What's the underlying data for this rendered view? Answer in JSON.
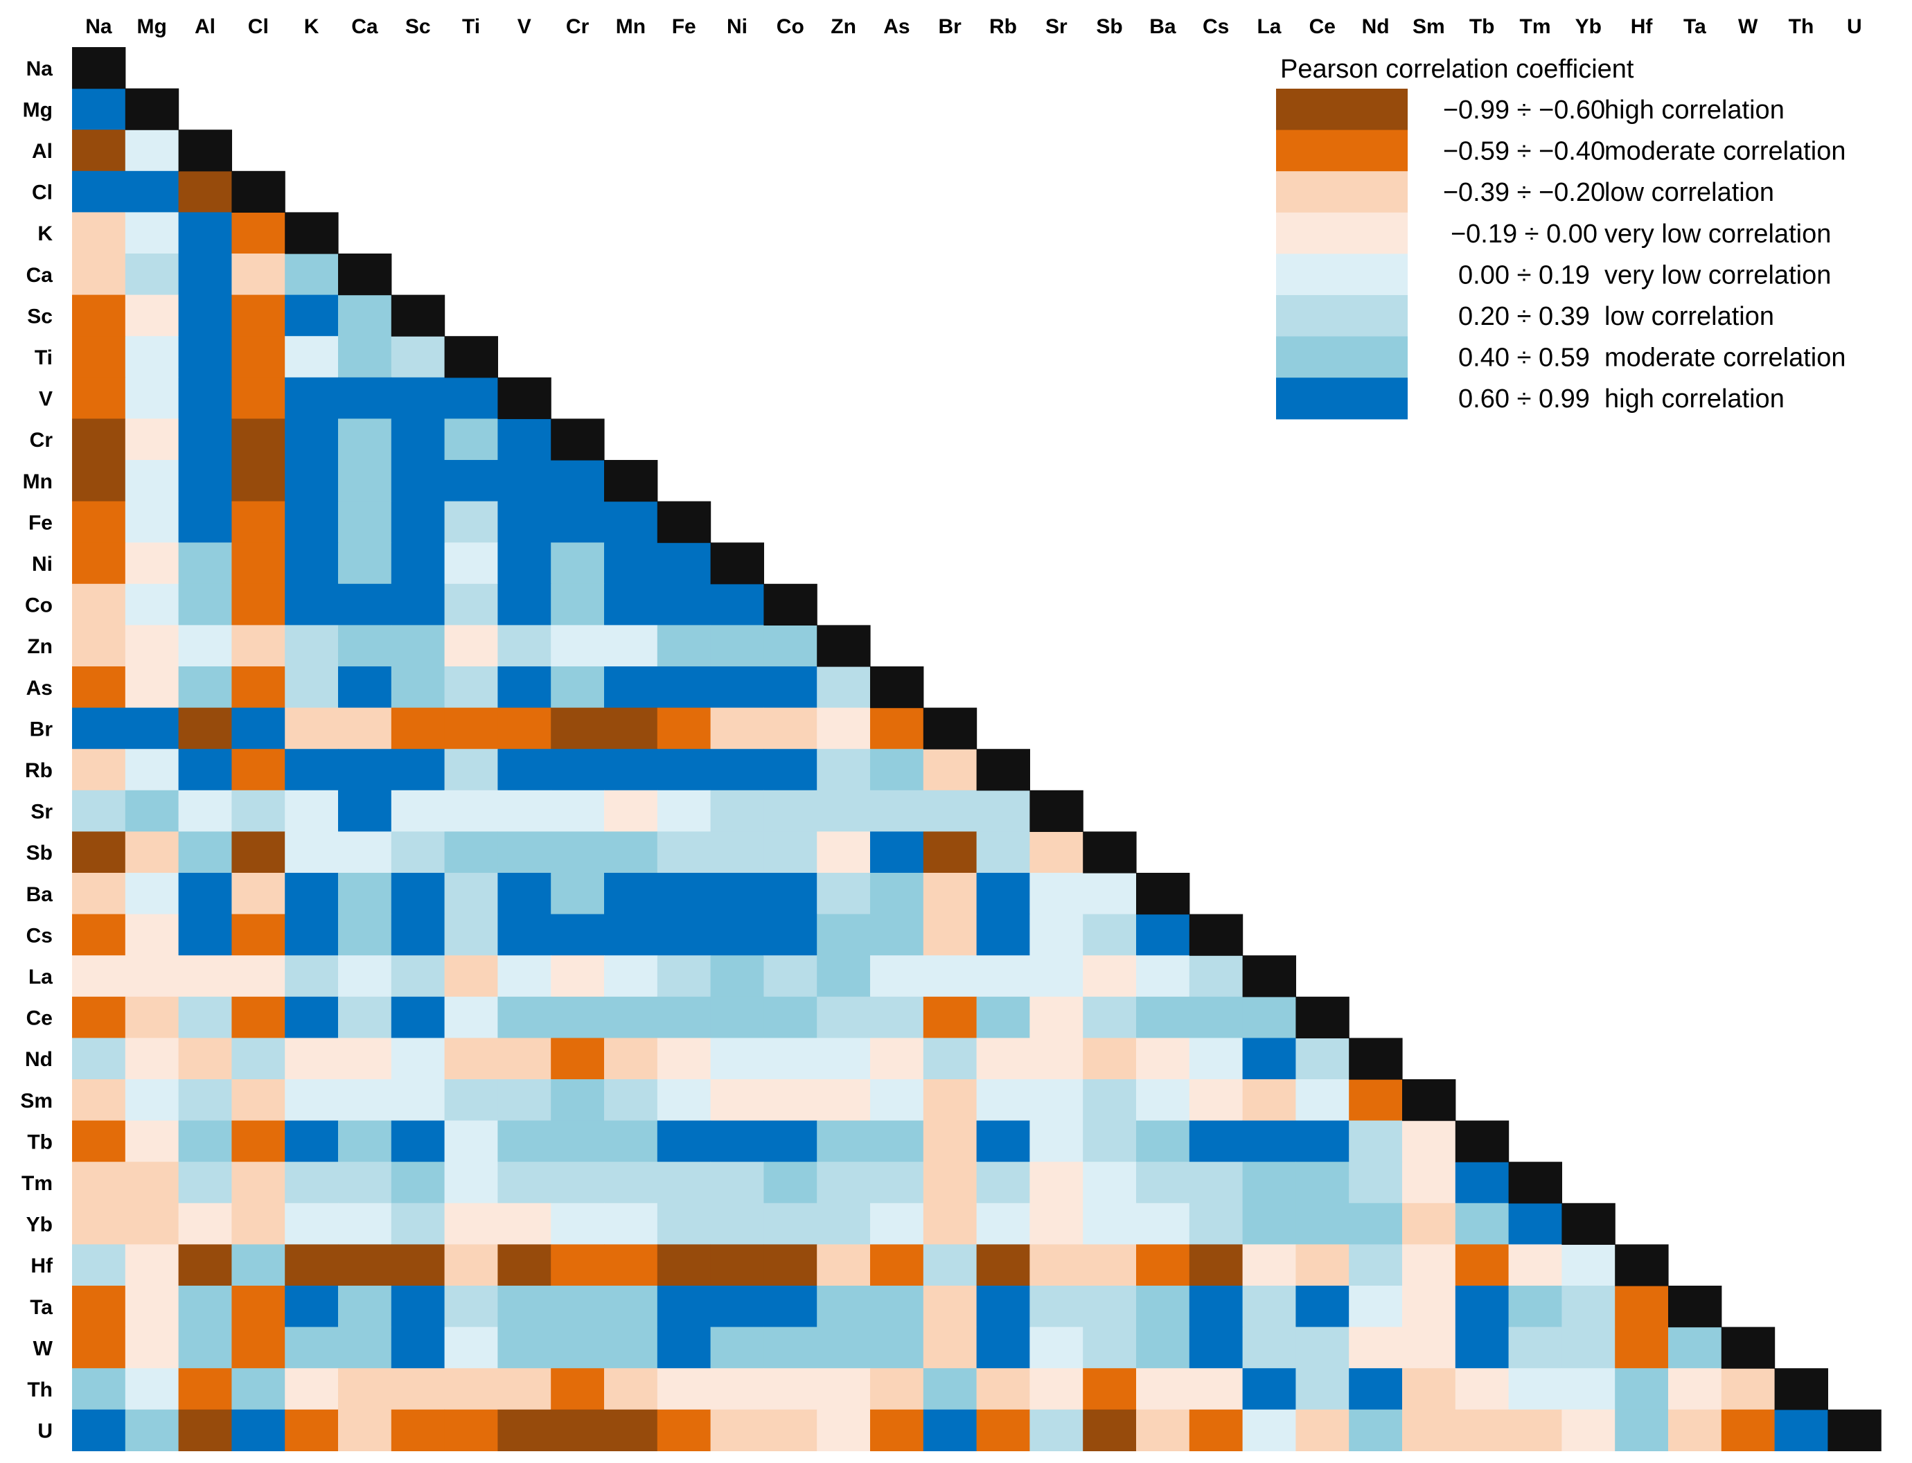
{
  "chart_data": {
    "type": "heatmap",
    "title": "Pearson correlation coefficient",
    "variables": [
      "Na",
      "Mg",
      "Al",
      "Cl",
      "K",
      "Ca",
      "Sc",
      "Ti",
      "V",
      "Cr",
      "Mn",
      "Fe",
      "Ni",
      "Co",
      "Zn",
      "As",
      "Br",
      "Rb",
      "Sr",
      "Sb",
      "Ba",
      "Cs",
      "La",
      "Ce",
      "Nd",
      "Sm",
      "Tb",
      "Tm",
      "Yb",
      "Hf",
      "Ta",
      "W",
      "Th",
      "U"
    ],
    "layout": "lower-triangle",
    "diagonal_color": "#111111",
    "value_encoding": "category index into legend.categories (0 = -0.99÷-0.60 ... 7 = 0.60÷0.99)",
    "legend": {
      "title": "Pearson correlation coefficient",
      "categories": [
        {
          "range": "−0.99 ÷ −0.60",
          "label": "high correlation",
          "color": "#974b0c"
        },
        {
          "range": "−0.59 ÷ −0.40",
          "label": "moderate correlation",
          "color": "#e36c09"
        },
        {
          "range": "−0.39 ÷ −0.20",
          "label": "low correlation",
          "color": "#fad4b8"
        },
        {
          "range": "−0.19 ÷ 0.00",
          "label": "very low correlation",
          "color": "#fce8dc"
        },
        {
          "range": "0.00 ÷ 0.19",
          "label": "very low correlation",
          "color": "#dceff6"
        },
        {
          "range": "0.20 ÷ 0.39",
          "label": "low correlation",
          "color": "#b8dde8"
        },
        {
          "range": "0.40 ÷ 0.59",
          "label": "moderate correlation",
          "color": "#92cddd"
        },
        {
          "range": "0.60 ÷ 0.99",
          "label": "high correlation",
          "color": "#0070c0"
        }
      ]
    },
    "matrix": [
      [],
      [
        7
      ],
      [
        0,
        4
      ],
      [
        7,
        7,
        0
      ],
      [
        2,
        4,
        7,
        1
      ],
      [
        2,
        5,
        7,
        2,
        6
      ],
      [
        1,
        3,
        7,
        1,
        7,
        6
      ],
      [
        1,
        4,
        7,
        1,
        4,
        6,
        5
      ],
      [
        1,
        4,
        7,
        1,
        7,
        7,
        7,
        7
      ],
      [
        0,
        3,
        7,
        0,
        7,
        6,
        7,
        6,
        7
      ],
      [
        0,
        4,
        7,
        0,
        7,
        6,
        7,
        7,
        7,
        7
      ],
      [
        1,
        4,
        7,
        1,
        7,
        6,
        7,
        5,
        7,
        7,
        7
      ],
      [
        1,
        3,
        6,
        1,
        7,
        6,
        7,
        4,
        7,
        6,
        7,
        7
      ],
      [
        2,
        4,
        6,
        1,
        7,
        7,
        7,
        5,
        7,
        6,
        7,
        7,
        7
      ],
      [
        2,
        3,
        4,
        2,
        5,
        6,
        6,
        3,
        5,
        4,
        4,
        6,
        6,
        6
      ],
      [
        1,
        3,
        6,
        1,
        5,
        7,
        6,
        5,
        7,
        6,
        7,
        7,
        7,
        7,
        5
      ],
      [
        7,
        7,
        0,
        7,
        2,
        2,
        1,
        1,
        1,
        0,
        0,
        1,
        2,
        2,
        3,
        1
      ],
      [
        2,
        4,
        7,
        1,
        7,
        7,
        7,
        5,
        7,
        7,
        7,
        7,
        7,
        7,
        5,
        6,
        2
      ],
      [
        5,
        6,
        4,
        5,
        4,
        7,
        4,
        4,
        4,
        4,
        3,
        4,
        5,
        5,
        5,
        5,
        5,
        5
      ],
      [
        0,
        2,
        6,
        0,
        4,
        4,
        5,
        6,
        6,
        6,
        6,
        5,
        5,
        5,
        3,
        7,
        0,
        5,
        2
      ],
      [
        2,
        4,
        7,
        2,
        7,
        6,
        7,
        5,
        7,
        6,
        7,
        7,
        7,
        7,
        5,
        6,
        2,
        7,
        4,
        4
      ],
      [
        1,
        3,
        7,
        1,
        7,
        6,
        7,
        5,
        7,
        7,
        7,
        7,
        7,
        7,
        6,
        6,
        2,
        7,
        4,
        5,
        7
      ],
      [
        3,
        3,
        3,
        3,
        5,
        4,
        5,
        2,
        4,
        3,
        4,
        5,
        6,
        5,
        6,
        4,
        4,
        4,
        4,
        3,
        4,
        5
      ],
      [
        1,
        2,
        5,
        1,
        7,
        5,
        7,
        4,
        6,
        6,
        6,
        6,
        6,
        6,
        5,
        5,
        1,
        6,
        3,
        5,
        6,
        6,
        6
      ],
      [
        5,
        3,
        2,
        5,
        3,
        3,
        4,
        2,
        2,
        1,
        2,
        3,
        4,
        4,
        4,
        3,
        5,
        3,
        3,
        2,
        3,
        4,
        7,
        5
      ],
      [
        2,
        4,
        5,
        2,
        4,
        4,
        4,
        5,
        5,
        6,
        5,
        4,
        3,
        3,
        3,
        4,
        2,
        4,
        4,
        5,
        4,
        3,
        2,
        4,
        1
      ],
      [
        1,
        3,
        6,
        1,
        7,
        6,
        7,
        4,
        6,
        6,
        6,
        7,
        7,
        7,
        6,
        6,
        2,
        7,
        4,
        5,
        6,
        7,
        7,
        7,
        5,
        3
      ],
      [
        2,
        2,
        5,
        2,
        5,
        5,
        6,
        4,
        5,
        5,
        5,
        5,
        5,
        6,
        5,
        5,
        2,
        5,
        3,
        4,
        5,
        5,
        6,
        6,
        5,
        3,
        7
      ],
      [
        2,
        2,
        3,
        2,
        4,
        4,
        5,
        3,
        3,
        4,
        4,
        5,
        5,
        5,
        5,
        4,
        2,
        4,
        3,
        4,
        4,
        5,
        6,
        6,
        6,
        2,
        6,
        7
      ],
      [
        5,
        3,
        0,
        6,
        0,
        0,
        0,
        2,
        0,
        1,
        1,
        0,
        0,
        0,
        2,
        1,
        5,
        0,
        2,
        2,
        1,
        0,
        3,
        2,
        5,
        3,
        1,
        3,
        4
      ],
      [
        1,
        3,
        6,
        1,
        7,
        6,
        7,
        5,
        6,
        6,
        6,
        7,
        7,
        7,
        6,
        6,
        2,
        7,
        5,
        5,
        6,
        7,
        5,
        7,
        4,
        3,
        7,
        6,
        5,
        1
      ],
      [
        1,
        3,
        6,
        1,
        6,
        6,
        7,
        4,
        6,
        6,
        6,
        7,
        6,
        6,
        6,
        6,
        2,
        7,
        4,
        5,
        6,
        7,
        5,
        5,
        3,
        3,
        7,
        5,
        5,
        1,
        6
      ],
      [
        6,
        4,
        1,
        6,
        3,
        2,
        2,
        2,
        2,
        1,
        2,
        3,
        3,
        3,
        3,
        2,
        6,
        2,
        3,
        1,
        3,
        3,
        7,
        5,
        7,
        2,
        3,
        4,
        4,
        6,
        3,
        2
      ],
      [
        7,
        6,
        0,
        7,
        1,
        2,
        1,
        1,
        0,
        0,
        0,
        1,
        2,
        2,
        3,
        1,
        7,
        1,
        5,
        0,
        2,
        1,
        4,
        2,
        6,
        2,
        2,
        2,
        3,
        6,
        2,
        1,
        7
      ]
    ]
  }
}
